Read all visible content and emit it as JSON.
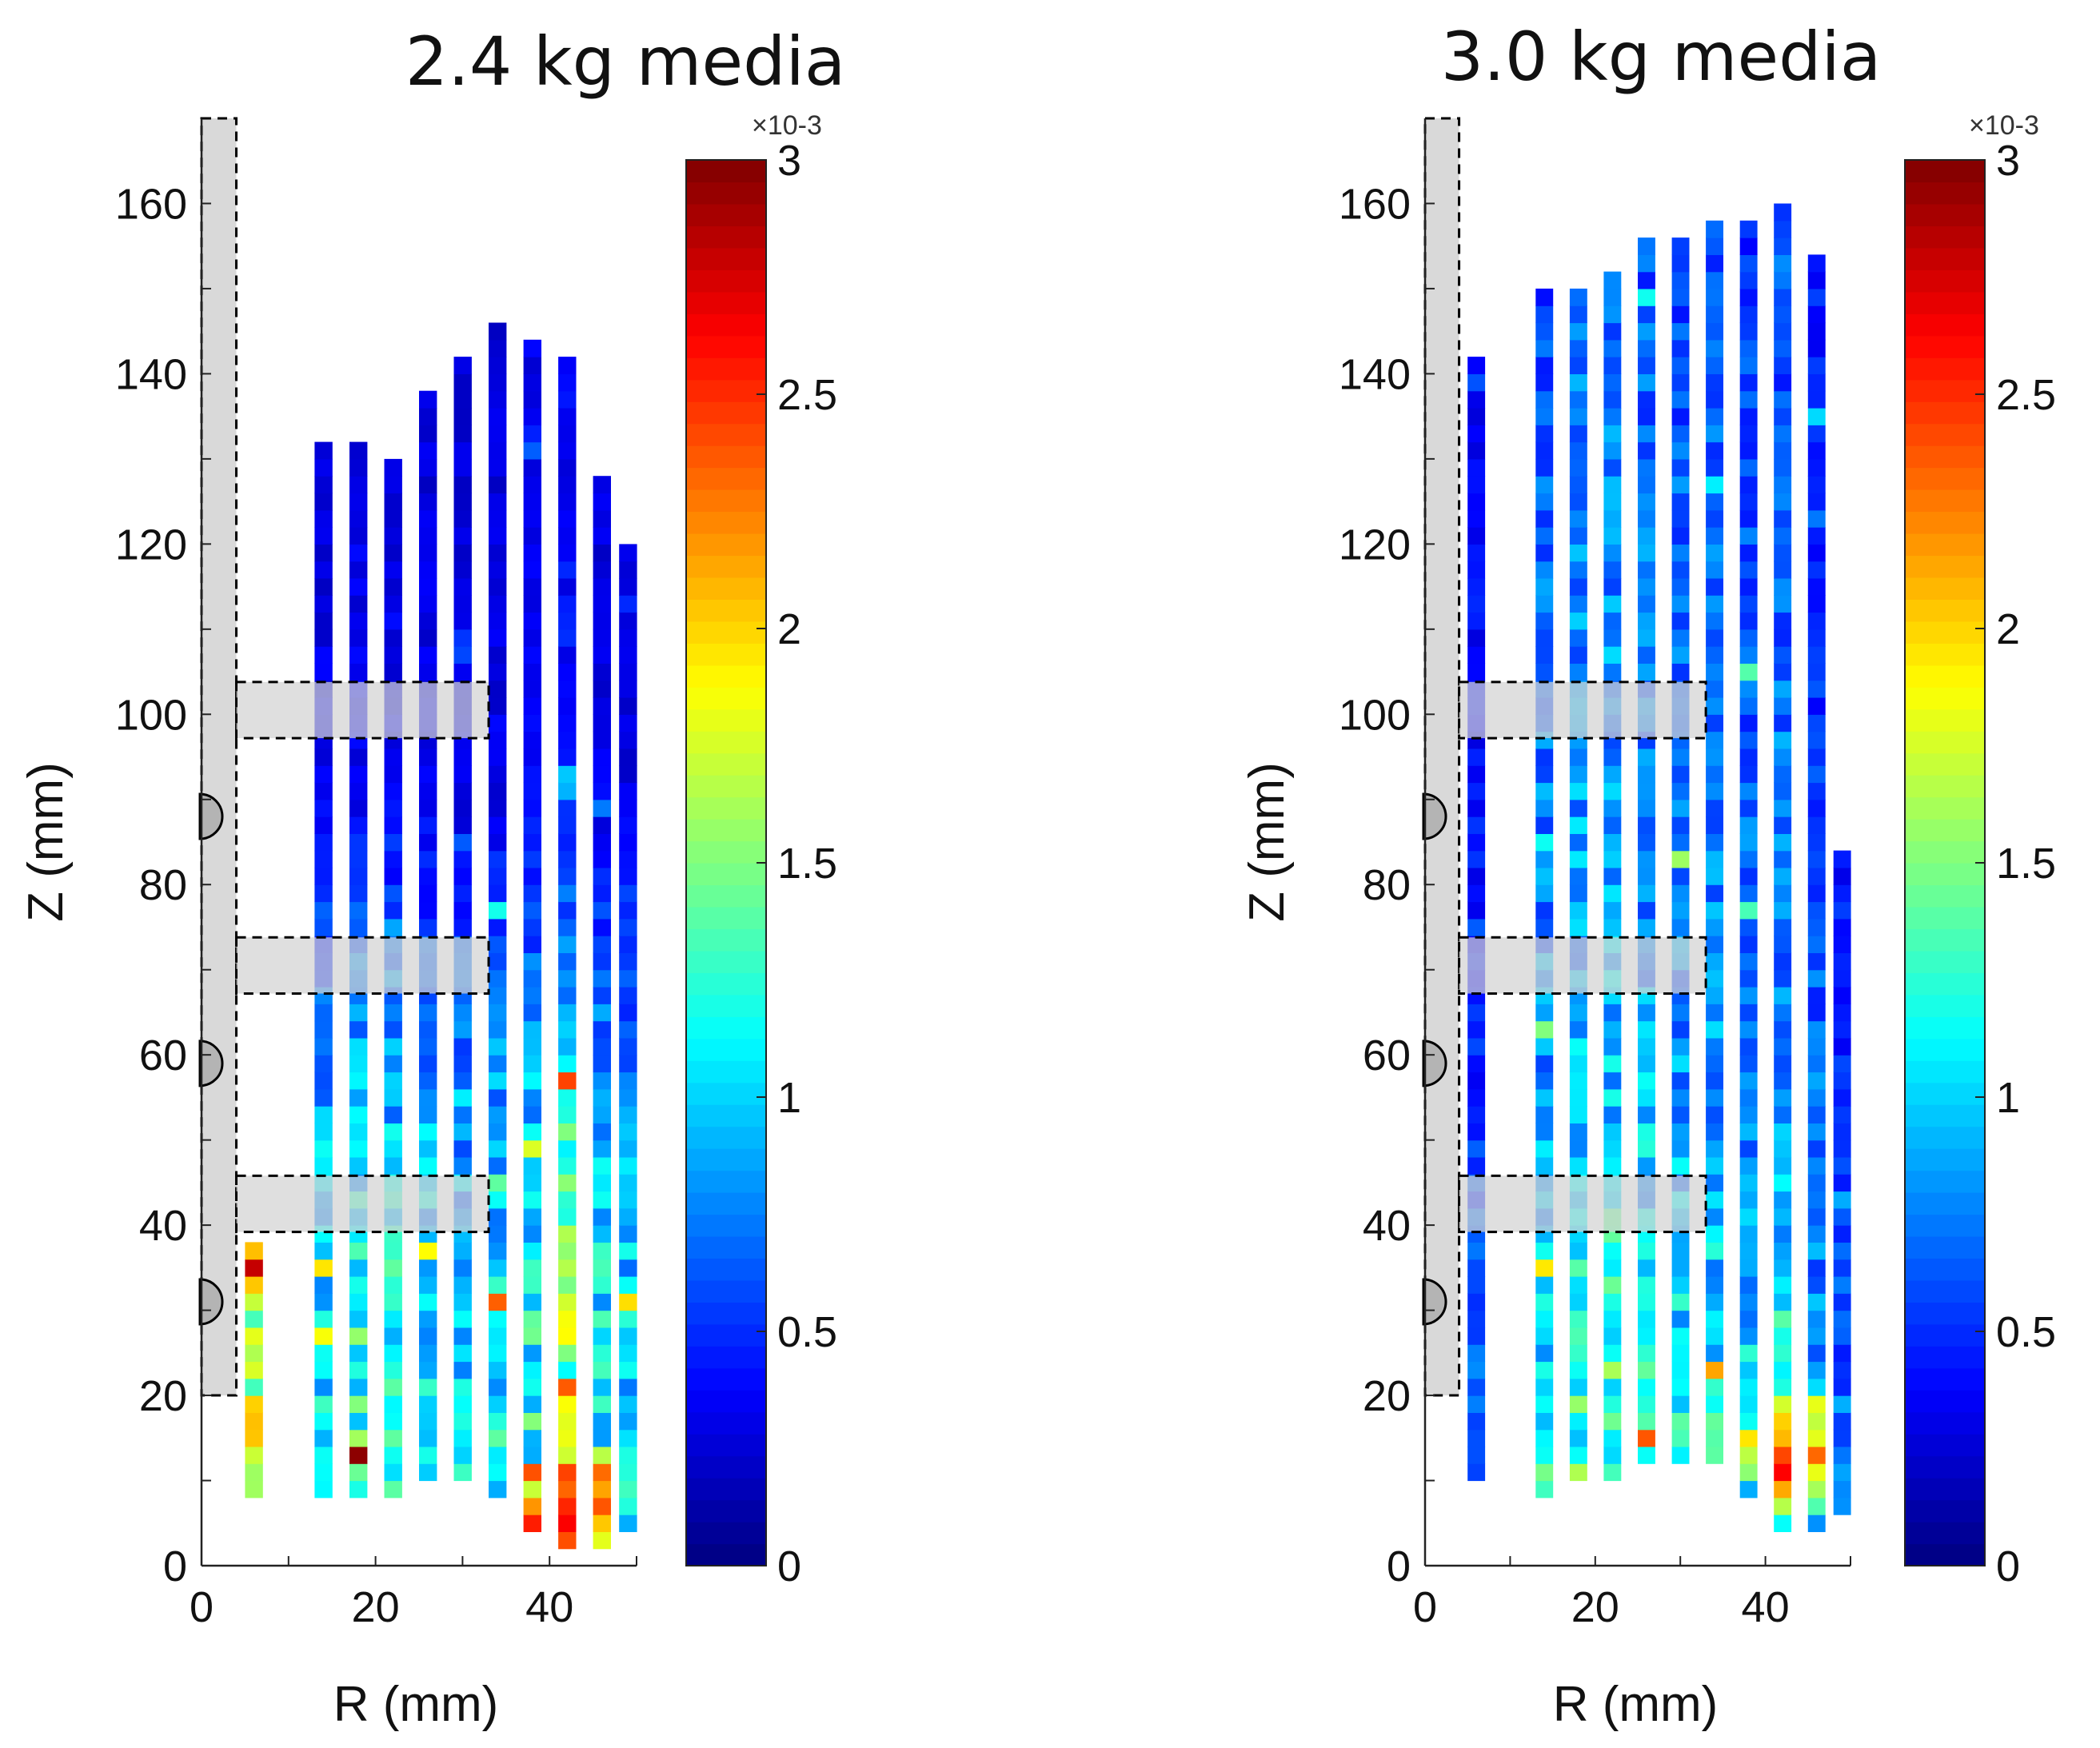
{
  "chart_data": [
    {
      "type": "heatmap",
      "title": "2.4 kg media",
      "xlabel": "R (mm)",
      "ylabel": "Z (mm)",
      "xlim": [
        0,
        50
      ],
      "ylim": [
        0,
        170
      ],
      "xticks": [
        0,
        20,
        40
      ],
      "yticks": [
        0,
        20,
        40,
        60,
        80,
        100,
        120,
        140,
        160
      ],
      "colorbar": {
        "min": 0,
        "max": 3,
        "ticks": [
          "0",
          "0.5",
          "1",
          "1.5",
          "2",
          "2.5",
          "3"
        ],
        "exponent_label": "×10-3",
        "colormap": "jet"
      },
      "cell_size_mm": [
        2.0,
        2.0
      ],
      "columns": [
        {
          "r": 6,
          "z": [
            8,
            38
          ],
          "base": 0.9
        },
        {
          "r": 14,
          "z": [
            8,
            132
          ],
          "base": 0.55
        },
        {
          "r": 18,
          "z": [
            8,
            132
          ],
          "base": 0.62
        },
        {
          "r": 22,
          "z": [
            8,
            130
          ],
          "base": 0.6
        },
        {
          "r": 26,
          "z": [
            10,
            138
          ],
          "base": 0.55
        },
        {
          "r": 30,
          "z": [
            10,
            142
          ],
          "base": 0.5
        },
        {
          "r": 34,
          "z": [
            8,
            146
          ],
          "base": 0.55
        },
        {
          "r": 38,
          "z": [
            4,
            144
          ],
          "base": 0.6
        },
        {
          "r": 42,
          "z": [
            2,
            142
          ],
          "base": 0.75
        },
        {
          "r": 46,
          "z": [
            2,
            128
          ],
          "base": 0.55
        },
        {
          "r": 49,
          "z": [
            4,
            120
          ],
          "base": 0.5
        }
      ],
      "hotspot": {
        "r": 43,
        "z": 7,
        "value": 3.0
      },
      "vertical_profile": [
        [
          0,
          1.3
        ],
        [
          20,
          1.2
        ],
        [
          40,
          1.1
        ],
        [
          70,
          0.7
        ],
        [
          90,
          0.35
        ],
        [
          120,
          0.3
        ],
        [
          146,
          0.3
        ]
      ],
      "internals": {
        "shaft": {
          "r": [
            0,
            4
          ],
          "z": [
            20,
            170
          ]
        },
        "blades": [
          {
            "z": 42.5,
            "r_end": 33
          },
          {
            "z": 70.5,
            "r_end": 33
          },
          {
            "z": 100.5,
            "r_end": 33
          }
        ],
        "bumps_z": [
          31,
          59,
          88
        ]
      }
    },
    {
      "type": "heatmap",
      "title": "3.0 kg media",
      "xlabel": "R (mm)",
      "ylabel": "Z (mm)",
      "xlim": [
        0,
        50
      ],
      "ylim": [
        0,
        170
      ],
      "xticks": [
        0,
        20,
        40
      ],
      "yticks": [
        0,
        20,
        40,
        60,
        80,
        100,
        120,
        140,
        160
      ],
      "colorbar": {
        "min": 0,
        "max": 3,
        "ticks": [
          "0",
          "0.5",
          "1",
          "1.5",
          "2",
          "2.5",
          "3"
        ],
        "exponent_label": "×10-3",
        "colormap": "jet"
      },
      "cell_size_mm": [
        2.0,
        2.0
      ],
      "columns": [
        {
          "r": 6,
          "z": [
            10,
            142
          ],
          "base": 0.35
        },
        {
          "r": 14,
          "z": [
            8,
            150
          ],
          "base": 0.6
        },
        {
          "r": 18,
          "z": [
            10,
            150
          ],
          "base": 0.7
        },
        {
          "r": 22,
          "z": [
            10,
            152
          ],
          "base": 0.7
        },
        {
          "r": 26,
          "z": [
            12,
            156
          ],
          "base": 0.65
        },
        {
          "r": 30,
          "z": [
            12,
            156
          ],
          "base": 0.6
        },
        {
          "r": 34,
          "z": [
            12,
            158
          ],
          "base": 0.6
        },
        {
          "r": 38,
          "z": [
            8,
            158
          ],
          "base": 0.55
        },
        {
          "r": 42,
          "z": [
            4,
            160
          ],
          "base": 0.6
        },
        {
          "r": 46,
          "z": [
            4,
            154
          ],
          "base": 0.45
        },
        {
          "r": 49,
          "z": [
            6,
            84
          ],
          "base": 0.35
        }
      ],
      "hotspot": {
        "r": 43,
        "z": 13,
        "value": 2.7
      },
      "vertical_profile": [
        [
          0,
          1.2
        ],
        [
          20,
          1.1
        ],
        [
          40,
          0.95
        ],
        [
          70,
          0.75
        ],
        [
          100,
          0.7
        ],
        [
          130,
          0.65
        ],
        [
          158,
          0.55
        ]
      ],
      "internals": {
        "shaft": {
          "r": [
            0,
            4
          ],
          "z": [
            20,
            170
          ]
        },
        "blades": [
          {
            "z": 42.5,
            "r_end": 33
          },
          {
            "z": 70.5,
            "r_end": 33
          },
          {
            "z": 100.5,
            "r_end": 33
          }
        ],
        "bumps_z": [
          31,
          59,
          88
        ]
      }
    }
  ]
}
